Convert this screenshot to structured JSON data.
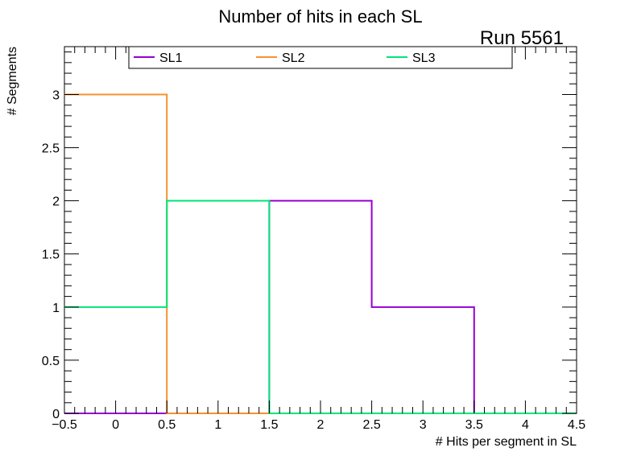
{
  "chart_data": {
    "type": "line",
    "step": true,
    "title": "Number of hits in each SL",
    "annotation": "Run 5561",
    "xlabel": "# Hits per segment in SL",
    "ylabel": "# Segments",
    "xlim": [
      -0.5,
      4.5
    ],
    "ylim": [
      0,
      3.45
    ],
    "x_ticks": [
      -0.5,
      0,
      0.5,
      1,
      1.5,
      2,
      2.5,
      3,
      3.5,
      4,
      4.5
    ],
    "y_ticks": [
      0,
      0.5,
      1,
      1.5,
      2,
      2.5,
      3
    ],
    "x_tick_labels": [
      "−0.5",
      "0",
      "0.5",
      "1",
      "1.5",
      "2",
      "2.5",
      "3",
      "3.5",
      "4",
      "4.5"
    ],
    "y_tick_labels": [
      "0",
      "0.5",
      "1",
      "1.5",
      "2",
      "2.5",
      "3"
    ],
    "bin_edges": [
      -0.5,
      0.5,
      1.5,
      2.5,
      3.5,
      4.5
    ],
    "legend_position": "top",
    "grid": false,
    "series": [
      {
        "name": "SL1",
        "color": "#9400d3",
        "values": [
          0,
          0,
          2,
          1,
          0
        ]
      },
      {
        "name": "SL2",
        "color": "#f5922f",
        "values": [
          3,
          0,
          0,
          0,
          0
        ]
      },
      {
        "name": "SL3",
        "color": "#00e676",
        "values": [
          1,
          2,
          0,
          0,
          0
        ]
      }
    ]
  }
}
